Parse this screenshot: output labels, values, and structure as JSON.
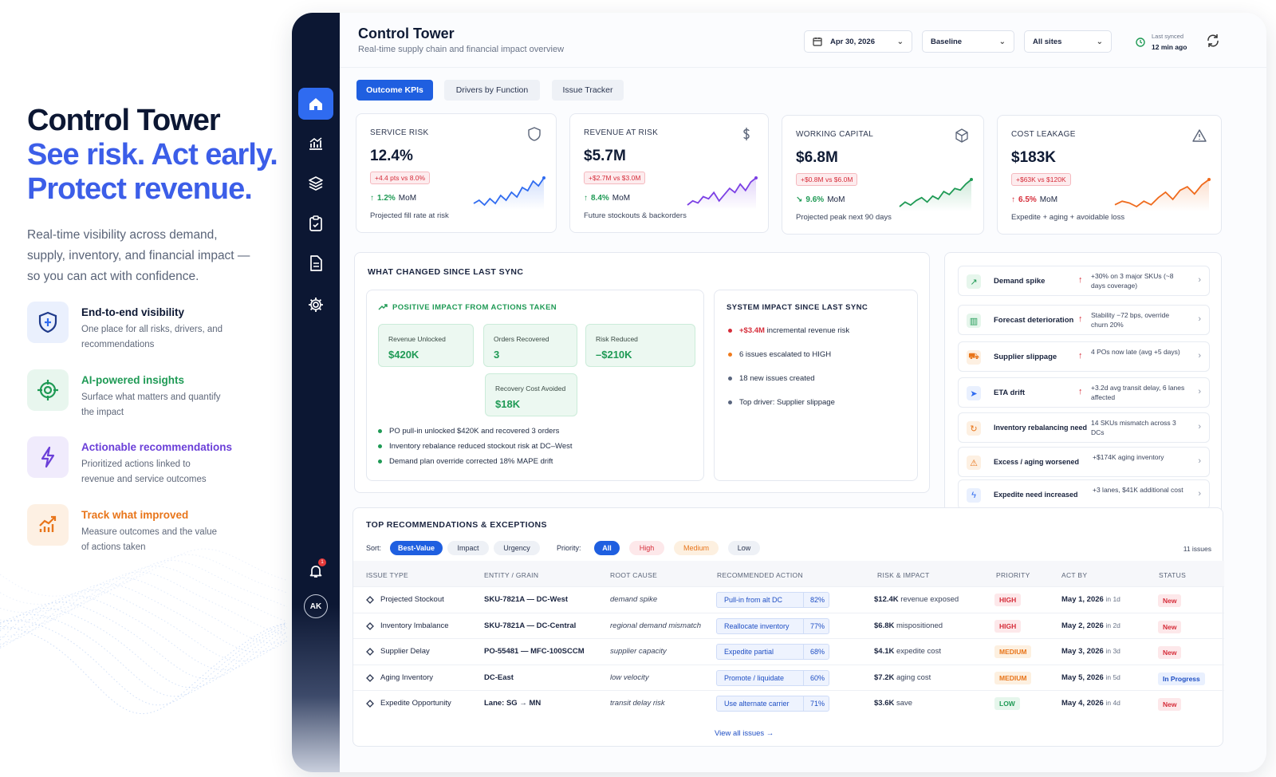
{
  "hero": {
    "title": "Control Tower",
    "tagline1": "See risk. Act early.",
    "tagline2": "Protect revenue.",
    "description": "Real-time visibility across demand, supply, inventory, and financial impact — so you can act with confidence.",
    "features": [
      {
        "title": "End-to-end visibility",
        "desc": "One place for all risks, drivers, and recommendations",
        "color": "#1f3a8a",
        "icon": "shield-icon"
      },
      {
        "title": "AI-powered insights",
        "desc": "Surface what matters and quantify the impact",
        "color": "#1f9a55",
        "icon": "target-icon"
      },
      {
        "title": "Actionable recommendations",
        "desc": "Prioritized actions linked to revenue and service outcomes",
        "color": "#6b3fd8",
        "icon": "bolt-icon"
      },
      {
        "title": "Track what improved",
        "desc": "Measure outcomes and the value of actions taken",
        "color": "#e8751a",
        "icon": "trend-up-icon"
      }
    ]
  },
  "sidebar": {
    "items": [
      "home-icon",
      "chart-icon",
      "layers-icon",
      "clipboard-icon",
      "document-icon",
      "gear-icon"
    ],
    "notification_count": "1",
    "avatar": "AK"
  },
  "header": {
    "title": "Control Tower",
    "subtitle": "Real-time supply chain and financial impact overview",
    "date": "Apr 30, 2026",
    "scenario": "Baseline",
    "sites": "All sites",
    "sync_label": "Last synced",
    "sync_value": "12 min ago"
  },
  "tabs": [
    "Outcome KPIs",
    "Drivers by Function",
    "Issue Tracker"
  ],
  "kpis": [
    {
      "label": "SERVICE RISK",
      "value": "12.4%",
      "delta": "+4.4 pts vs 8.0%",
      "mom_arrow": "↑",
      "mom_pct": "1.2%",
      "mom": "MoM",
      "note": "Projected fill rate at risk",
      "color": "#2f6bf0",
      "icon": "shield-icon",
      "spark": [
        20,
        22,
        19,
        23,
        20,
        25,
        22,
        27,
        24,
        30,
        28,
        34,
        31,
        36
      ]
    },
    {
      "label": "REVENUE AT RISK",
      "value": "$5.7M",
      "delta": "+$2.7M vs $3.0M",
      "mom_arrow": "↑",
      "mom_pct": "8.4%",
      "mom": "MoM",
      "note": "Future stockouts & backorders",
      "color": "#7b3fe4",
      "icon": "dollar-icon",
      "spark": [
        22,
        24,
        23,
        26,
        25,
        28,
        24,
        27,
        30,
        28,
        32,
        29,
        33,
        35
      ]
    },
    {
      "label": "WORKING CAPITAL",
      "value": "$6.8M",
      "delta": "+$0.8M vs $6.0M",
      "mom_arrow": "↘",
      "mom_pct": "9.6%",
      "mom": "MoM",
      "note": "Projected peak next 90 days",
      "color": "#1f9a55",
      "icon": "box-icon",
      "spark": [
        18,
        21,
        19,
        22,
        24,
        21,
        25,
        23,
        28,
        26,
        30,
        29,
        33,
        36
      ]
    },
    {
      "label": "COST LEAKAGE",
      "value": "$183K",
      "delta": "+$63K vs $120K",
      "mom_arrow": "↑",
      "mom_pct": "6.5%",
      "mom": "MoM",
      "note": "Expedite + aging + avoidable loss",
      "color": "#ef6a1c",
      "icon": "warning-icon",
      "spark": [
        20,
        22,
        21,
        19,
        22,
        20,
        24,
        27,
        23,
        28,
        30,
        26,
        31,
        34
      ]
    }
  ],
  "changes": {
    "title": "WHAT CHANGED SINCE LAST SYNC",
    "positive_title": "POSITIVE IMPACT FROM ACTIONS TAKEN",
    "tiles": [
      {
        "label": "Revenue Unlocked",
        "value": "$420K"
      },
      {
        "label": "Orders Recovered",
        "value": "3"
      },
      {
        "label": "Risk Reduced",
        "value": "–$210K"
      },
      {
        "label": "Recovery Cost Avoided",
        "value": "$18K"
      }
    ],
    "bullets": [
      "PO pull-in unlocked $420K and recovered 3 orders",
      "Inventory rebalance reduced stockout risk at DC–West",
      "Demand plan override corrected 18% MAPE drift"
    ],
    "system_title": "SYSTEM IMPACT SINCE LAST SYNC",
    "system": [
      {
        "highlight": "+$3.4M",
        "text": " incremental revenue risk",
        "color": "#d62d3a"
      },
      {
        "highlight": "",
        "text": "6 issues escalated to HIGH",
        "color": "#ef7a1c"
      },
      {
        "highlight": "",
        "text": "18 new issues created",
        "color": "#59657e"
      },
      {
        "highlight": "",
        "text": "Top driver: Supplier slippage",
        "color": "#59657e"
      }
    ]
  },
  "alerts": [
    {
      "name": "Demand spike",
      "up": "↑",
      "desc": "+30% on 3 major SKUs (~8 days coverage)",
      "icon": "trend-icon",
      "color": "#1f9a55",
      "bg": "#e6f6ec"
    },
    {
      "name": "Forecast deterioration",
      "up": "↑",
      "desc": "Stability −72 bps, override churn 20%",
      "icon": "bar-chart-icon",
      "color": "#1f9a55",
      "bg": "#e6f6ec"
    },
    {
      "name": "Supplier slippage",
      "up": "↑",
      "desc": "4 POs now late (avg +5 days)",
      "icon": "truck-icon",
      "color": "#e8751a",
      "bg": "#fdf0e2"
    },
    {
      "name": "ETA drift",
      "up": "↑",
      "desc": "+3.2d avg transit delay, 6 lanes affected",
      "icon": "navigation-icon",
      "color": "#2f6bf0",
      "bg": "#e9f0fe"
    },
    {
      "name": "Inventory rebalancing need",
      "up": "",
      "desc": "14 SKUs mismatch across 3 DCs",
      "icon": "refresh-icon",
      "color": "#e8751a",
      "bg": "#fdf0e2"
    },
    {
      "name": "Excess / aging worsened",
      "up": "",
      "desc": "+$174K aging inventory",
      "icon": "warning-icon",
      "color": "#e8751a",
      "bg": "#fdf0e2"
    },
    {
      "name": "Expedite need increased",
      "up": "",
      "desc": "+3 lanes, $41K additional cost",
      "icon": "bolt-icon",
      "color": "#2f6bf0",
      "bg": "#e9f0fe"
    }
  ],
  "recs": {
    "title": "TOP RECOMMENDATIONS & EXCEPTIONS",
    "sort_label": "Sort:",
    "sorts": [
      "Best-Value",
      "Impact",
      "Urgency"
    ],
    "priority_label": "Priority:",
    "priorities": [
      "All",
      "High",
      "Medium",
      "Low"
    ],
    "count": "11 issues",
    "columns": [
      "ISSUE TYPE",
      "ENTITY / GRAIN",
      "ROOT CAUSE",
      "RECOMMENDED ACTION",
      "RISK & IMPACT",
      "PRIORITY",
      "ACT BY",
      "STATUS"
    ],
    "rows": [
      {
        "type": "Projected Stockout",
        "entity": "SKU-7821A — DC-West",
        "cause": "demand spike",
        "action": "Pull-in from alt DC",
        "pct": "82%",
        "risk": "$12.4K",
        "risk_note": "revenue exposed",
        "priority": "HIGH",
        "date": "May 1, 2026",
        "in": "in 1d",
        "status": "New"
      },
      {
        "type": "Inventory Imbalance",
        "entity": "SKU-7821A — DC-Central",
        "cause": "regional demand mismatch",
        "action": "Reallocate inventory",
        "pct": "77%",
        "risk": "$6.8K",
        "risk_note": "mispositioned",
        "priority": "HIGH",
        "date": "May 2, 2026",
        "in": "in 2d",
        "status": "New"
      },
      {
        "type": "Supplier Delay",
        "entity": "PO-55481 — MFC-100SCCM",
        "cause": "supplier capacity",
        "action": "Expedite partial",
        "pct": "68%",
        "risk": "$4.1K",
        "risk_note": "expedite cost",
        "priority": "MEDIUM",
        "date": "May 3, 2026",
        "in": "in 3d",
        "status": "New"
      },
      {
        "type": "Aging Inventory",
        "entity": "DC-East",
        "cause": "low velocity",
        "action": "Promote / liquidate",
        "pct": "60%",
        "risk": "$7.2K",
        "risk_note": "aging cost",
        "priority": "MEDIUM",
        "date": "May 5, 2026",
        "in": "in 5d",
        "status": "In Progress"
      },
      {
        "type": "Expedite Opportunity",
        "entity": "Lane: SG → MN",
        "cause": "transit delay risk",
        "action": "Use alternate carrier",
        "pct": "71%",
        "risk": "$3.6K",
        "risk_note": "save",
        "priority": "LOW",
        "date": "May 4, 2026",
        "in": "in 4d",
        "status": "New"
      }
    ],
    "view_all": "View all issues →"
  }
}
